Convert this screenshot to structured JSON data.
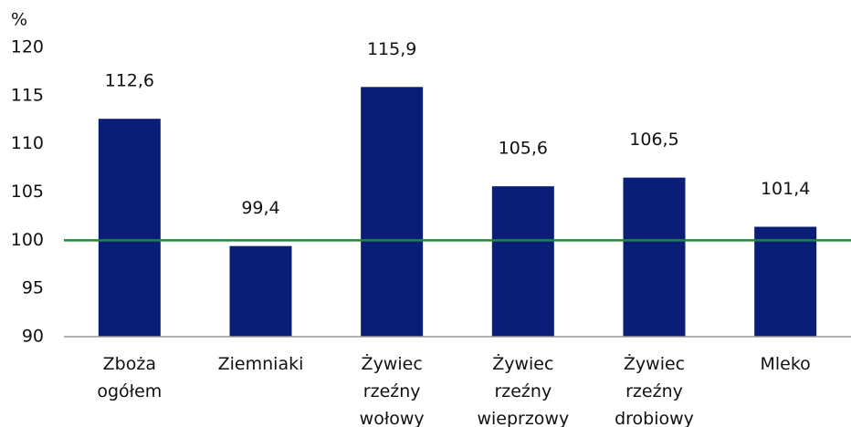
{
  "chart_data": {
    "type": "bar",
    "y_label": "%",
    "categories": [
      "Zboża ogółem",
      "Ziemniaki",
      "Żywiec rzeźny wołowy",
      "Żywiec rzeźny wieprzowy",
      "Żywiec rzeźny drobiowy",
      "Mleko"
    ],
    "values": [
      112.6,
      99.4,
      115.9,
      105.6,
      106.5,
      101.4
    ],
    "value_labels": [
      "112,6",
      "99,4",
      "115,9",
      "105,6",
      "106,5",
      "101,4"
    ],
    "color": "#0a1e78",
    "ylim": [
      90,
      120
    ],
    "yticks": [
      90,
      95,
      100,
      105,
      110,
      115,
      120
    ],
    "reference_line": 100,
    "reference_color": "#1b8a3c",
    "grid": false
  }
}
